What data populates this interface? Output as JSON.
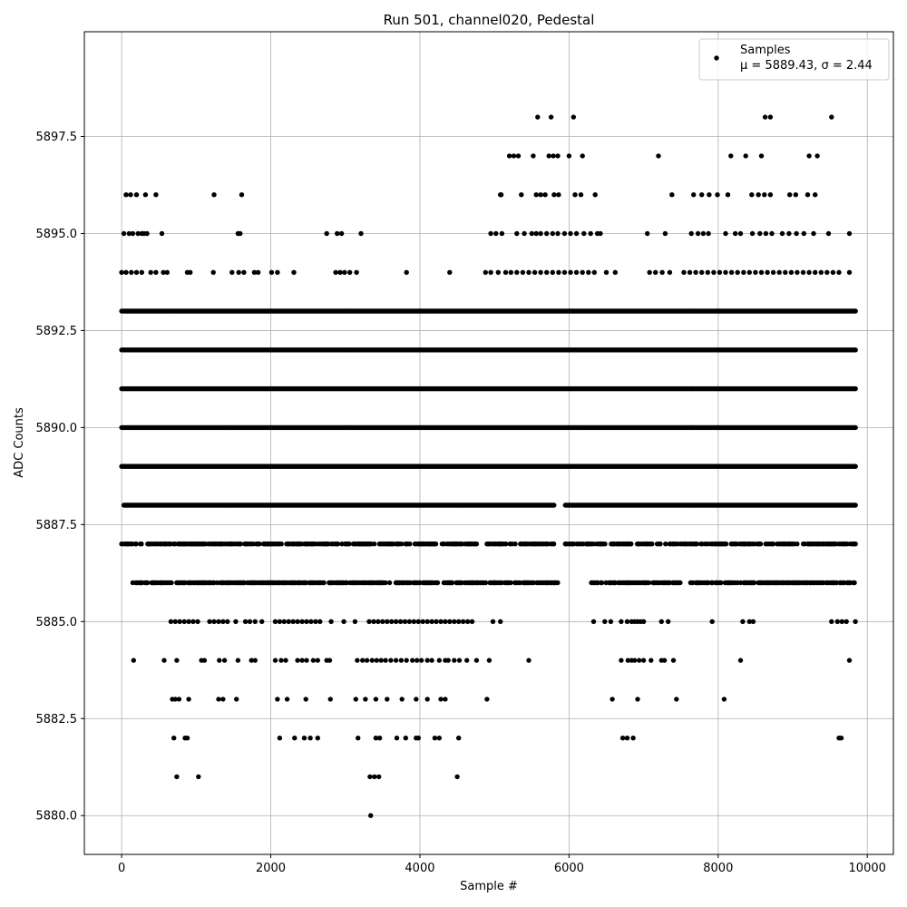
{
  "chart_data": {
    "type": "scatter",
    "title": "Run 501, channel020, Pedestal",
    "xlabel": "Sample #",
    "ylabel": "ADC Counts",
    "xlim": [
      -500,
      10350
    ],
    "ylim": [
      5879.0,
      5900.2
    ],
    "x_ticks": [
      0,
      2000,
      4000,
      6000,
      8000,
      10000
    ],
    "x_tick_labels": [
      "0",
      "2000",
      "4000",
      "6000",
      "8000",
      "10000"
    ],
    "y_ticks": [
      5880.0,
      5882.5,
      5885.0,
      5887.5,
      5890.0,
      5892.5,
      5895.0,
      5897.5
    ],
    "y_tick_labels": [
      "5880.0",
      "5882.5",
      "5885.0",
      "5887.5",
      "5890.0",
      "5892.5",
      "5895.0",
      "5897.5"
    ],
    "grid": true,
    "legend_position": "top-right",
    "legend": {
      "series_name": "Samples",
      "stats_text": "μ = 5889.43, σ = 2.44"
    },
    "marker_color": "#000000",
    "mean": 5889.43,
    "sigma": 2.44,
    "levels": [
      {
        "y": 5888,
        "ranges": [
          [
            30,
            5800
          ],
          [
            5950,
            9850
          ]
        ]
      },
      {
        "y": 5889,
        "ranges": [
          [
            0,
            9850
          ]
        ]
      },
      {
        "y": 5890,
        "ranges": [
          [
            0,
            9850
          ]
        ]
      },
      {
        "y": 5891,
        "ranges": [
          [
            0,
            9850
          ]
        ]
      },
      {
        "y": 5892,
        "ranges": [
          [
            0,
            9850
          ]
        ]
      },
      {
        "y": 5893,
        "ranges": [
          [
            0,
            9850
          ]
        ]
      },
      {
        "y": 5887,
        "ranges": [
          [
            0,
            5800
          ],
          [
            5950,
            9850
          ]
        ]
      },
      {
        "y": 5886,
        "ranges": [
          [
            150,
            5850
          ],
          [
            6300,
            9850
          ]
        ]
      }
    ],
    "points": [
      [
        60,
        5896
      ],
      [
        120,
        5896
      ],
      [
        200,
        5896
      ],
      [
        320,
        5896
      ],
      [
        460,
        5896
      ],
      [
        1240,
        5896
      ],
      [
        1610,
        5896
      ],
      [
        5080,
        5896
      ],
      [
        5090,
        5896
      ],
      [
        5360,
        5896
      ],
      [
        5560,
        5896
      ],
      [
        5620,
        5896
      ],
      [
        5680,
        5896
      ],
      [
        5800,
        5896
      ],
      [
        5860,
        5896
      ],
      [
        6080,
        5896
      ],
      [
        6160,
        5896
      ],
      [
        6350,
        5896
      ],
      [
        7380,
        5896
      ],
      [
        7670,
        5896
      ],
      [
        7780,
        5896
      ],
      [
        7880,
        5896
      ],
      [
        7990,
        5896
      ],
      [
        8130,
        5896
      ],
      [
        8450,
        5896
      ],
      [
        8540,
        5896
      ],
      [
        8620,
        5896
      ],
      [
        8700,
        5896
      ],
      [
        8960,
        5896
      ],
      [
        9040,
        5896
      ],
      [
        9200,
        5896
      ],
      [
        9300,
        5896
      ],
      [
        5200,
        5897
      ],
      [
        5260,
        5897
      ],
      [
        5320,
        5897
      ],
      [
        5520,
        5897
      ],
      [
        5730,
        5897
      ],
      [
        5790,
        5897
      ],
      [
        5850,
        5897
      ],
      [
        6000,
        5897
      ],
      [
        6180,
        5897
      ],
      [
        7200,
        5897
      ],
      [
        8170,
        5897
      ],
      [
        8370,
        5897
      ],
      [
        8580,
        5897
      ],
      [
        9220,
        5897
      ],
      [
        9330,
        5897
      ],
      [
        5580,
        5898
      ],
      [
        5760,
        5898
      ],
      [
        6060,
        5898
      ],
      [
        8630,
        5898
      ],
      [
        8700,
        5898
      ],
      [
        9520,
        5898
      ],
      [
        30,
        5895
      ],
      [
        100,
        5895
      ],
      [
        150,
        5895
      ],
      [
        220,
        5895
      ],
      [
        270,
        5895
      ],
      [
        300,
        5895
      ],
      [
        340,
        5895
      ],
      [
        540,
        5895
      ],
      [
        1560,
        5895
      ],
      [
        1590,
        5895
      ],
      [
        2750,
        5895
      ],
      [
        2890,
        5895
      ],
      [
        2950,
        5895
      ],
      [
        3210,
        5895
      ],
      [
        4950,
        5895
      ],
      [
        5020,
        5895
      ],
      [
        5100,
        5895
      ],
      [
        5300,
        5895
      ],
      [
        5400,
        5895
      ],
      [
        5500,
        5895
      ],
      [
        5560,
        5895
      ],
      [
        5620,
        5895
      ],
      [
        5700,
        5895
      ],
      [
        5780,
        5895
      ],
      [
        5850,
        5895
      ],
      [
        5940,
        5895
      ],
      [
        6020,
        5895
      ],
      [
        6100,
        5895
      ],
      [
        6200,
        5895
      ],
      [
        6290,
        5895
      ],
      [
        6380,
        5895
      ],
      [
        6420,
        5895
      ],
      [
        7050,
        5895
      ],
      [
        7290,
        5895
      ],
      [
        7640,
        5895
      ],
      [
        7730,
        5895
      ],
      [
        7800,
        5895
      ],
      [
        7870,
        5895
      ],
      [
        8100,
        5895
      ],
      [
        8230,
        5895
      ],
      [
        8300,
        5895
      ],
      [
        8460,
        5895
      ],
      [
        8560,
        5895
      ],
      [
        8640,
        5895
      ],
      [
        8720,
        5895
      ],
      [
        8860,
        5895
      ],
      [
        8950,
        5895
      ],
      [
        9050,
        5895
      ],
      [
        9150,
        5895
      ],
      [
        9280,
        5895
      ],
      [
        9480,
        5895
      ],
      [
        9760,
        5895
      ],
      [
        0,
        5894
      ],
      [
        60,
        5894
      ],
      [
        130,
        5894
      ],
      [
        200,
        5894
      ],
      [
        270,
        5894
      ],
      [
        390,
        5894
      ],
      [
        460,
        5894
      ],
      [
        560,
        5894
      ],
      [
        610,
        5894
      ],
      [
        880,
        5894
      ],
      [
        920,
        5894
      ],
      [
        1230,
        5894
      ],
      [
        1480,
        5894
      ],
      [
        1570,
        5894
      ],
      [
        1640,
        5894
      ],
      [
        1780,
        5894
      ],
      [
        1830,
        5894
      ],
      [
        2010,
        5894
      ],
      [
        2090,
        5894
      ],
      [
        2310,
        5894
      ],
      [
        2870,
        5894
      ],
      [
        2930,
        5894
      ],
      [
        2990,
        5894
      ],
      [
        3060,
        5894
      ],
      [
        3150,
        5894
      ],
      [
        3820,
        5894
      ],
      [
        4400,
        5894
      ],
      [
        4880,
        5894
      ],
      [
        4950,
        5894
      ],
      [
        5050,
        5894
      ],
      [
        5150,
        5894
      ],
      [
        5220,
        5894
      ],
      [
        5300,
        5894
      ],
      [
        5380,
        5894
      ],
      [
        5460,
        5894
      ],
      [
        5540,
        5894
      ],
      [
        5620,
        5894
      ],
      [
        5700,
        5894
      ],
      [
        5780,
        5894
      ],
      [
        5860,
        5894
      ],
      [
        5940,
        5894
      ],
      [
        6020,
        5894
      ],
      [
        6100,
        5894
      ],
      [
        6180,
        5894
      ],
      [
        6260,
        5894
      ],
      [
        6340,
        5894
      ],
      [
        6500,
        5894
      ],
      [
        6620,
        5894
      ],
      [
        7080,
        5894
      ],
      [
        7160,
        5894
      ],
      [
        7250,
        5894
      ],
      [
        7350,
        5894
      ],
      [
        7540,
        5894
      ],
      [
        7620,
        5894
      ],
      [
        7700,
        5894
      ],
      [
        7780,
        5894
      ],
      [
        7860,
        5894
      ],
      [
        7940,
        5894
      ],
      [
        8020,
        5894
      ],
      [
        8100,
        5894
      ],
      [
        8180,
        5894
      ],
      [
        8260,
        5894
      ],
      [
        8340,
        5894
      ],
      [
        8420,
        5894
      ],
      [
        8500,
        5894
      ],
      [
        8580,
        5894
      ],
      [
        8660,
        5894
      ],
      [
        8740,
        5894
      ],
      [
        8820,
        5894
      ],
      [
        8900,
        5894
      ],
      [
        8980,
        5894
      ],
      [
        9060,
        5894
      ],
      [
        9140,
        5894
      ],
      [
        9220,
        5894
      ],
      [
        9300,
        5894
      ],
      [
        9380,
        5894
      ],
      [
        9460,
        5894
      ],
      [
        9540,
        5894
      ],
      [
        9620,
        5894
      ],
      [
        9760,
        5894
      ],
      [
        660,
        5885
      ],
      [
        720,
        5885
      ],
      [
        780,
        5885
      ],
      [
        840,
        5885
      ],
      [
        900,
        5885
      ],
      [
        960,
        5885
      ],
      [
        1020,
        5885
      ],
      [
        1180,
        5885
      ],
      [
        1240,
        5885
      ],
      [
        1300,
        5885
      ],
      [
        1360,
        5885
      ],
      [
        1420,
        5885
      ],
      [
        1530,
        5885
      ],
      [
        1660,
        5885
      ],
      [
        1720,
        5885
      ],
      [
        1790,
        5885
      ],
      [
        1880,
        5885
      ],
      [
        2060,
        5885
      ],
      [
        2120,
        5885
      ],
      [
        2180,
        5885
      ],
      [
        2240,
        5885
      ],
      [
        2300,
        5885
      ],
      [
        2360,
        5885
      ],
      [
        2420,
        5885
      ],
      [
        2480,
        5885
      ],
      [
        2540,
        5885
      ],
      [
        2600,
        5885
      ],
      [
        2660,
        5885
      ],
      [
        2810,
        5885
      ],
      [
        2980,
        5885
      ],
      [
        3130,
        5885
      ],
      [
        3320,
        5885
      ],
      [
        3380,
        5885
      ],
      [
        3440,
        5885
      ],
      [
        3500,
        5885
      ],
      [
        3560,
        5885
      ],
      [
        3620,
        5885
      ],
      [
        3680,
        5885
      ],
      [
        3740,
        5885
      ],
      [
        3800,
        5885
      ],
      [
        3860,
        5885
      ],
      [
        3920,
        5885
      ],
      [
        3980,
        5885
      ],
      [
        4040,
        5885
      ],
      [
        4100,
        5885
      ],
      [
        4160,
        5885
      ],
      [
        4220,
        5885
      ],
      [
        4280,
        5885
      ],
      [
        4340,
        5885
      ],
      [
        4400,
        5885
      ],
      [
        4460,
        5885
      ],
      [
        4520,
        5885
      ],
      [
        4580,
        5885
      ],
      [
        4640,
        5885
      ],
      [
        4700,
        5885
      ],
      [
        4980,
        5885
      ],
      [
        5080,
        5885
      ],
      [
        6330,
        5885
      ],
      [
        6480,
        5885
      ],
      [
        6560,
        5885
      ],
      [
        6700,
        5885
      ],
      [
        6780,
        5885
      ],
      [
        6840,
        5885
      ],
      [
        6880,
        5885
      ],
      [
        6920,
        5885
      ],
      [
        6960,
        5885
      ],
      [
        7000,
        5885
      ],
      [
        7240,
        5885
      ],
      [
        7330,
        5885
      ],
      [
        7920,
        5885
      ],
      [
        8330,
        5885
      ],
      [
        8420,
        5885
      ],
      [
        8470,
        5885
      ],
      [
        9520,
        5885
      ],
      [
        9600,
        5885
      ],
      [
        9660,
        5885
      ],
      [
        9720,
        5885
      ],
      [
        9840,
        5885
      ],
      [
        160,
        5884
      ],
      [
        570,
        5884
      ],
      [
        740,
        5884
      ],
      [
        1070,
        5884
      ],
      [
        1110,
        5884
      ],
      [
        1310,
        5884
      ],
      [
        1380,
        5884
      ],
      [
        1560,
        5884
      ],
      [
        1740,
        5884
      ],
      [
        1790,
        5884
      ],
      [
        2060,
        5884
      ],
      [
        2140,
        5884
      ],
      [
        2200,
        5884
      ],
      [
        2360,
        5884
      ],
      [
        2420,
        5884
      ],
      [
        2480,
        5884
      ],
      [
        2570,
        5884
      ],
      [
        2630,
        5884
      ],
      [
        2750,
        5884
      ],
      [
        2790,
        5884
      ],
      [
        3160,
        5884
      ],
      [
        3230,
        5884
      ],
      [
        3290,
        5884
      ],
      [
        3360,
        5884
      ],
      [
        3420,
        5884
      ],
      [
        3480,
        5884
      ],
      [
        3540,
        5884
      ],
      [
        3610,
        5884
      ],
      [
        3680,
        5884
      ],
      [
        3750,
        5884
      ],
      [
        3820,
        5884
      ],
      [
        3900,
        5884
      ],
      [
        3960,
        5884
      ],
      [
        4020,
        5884
      ],
      [
        4100,
        5884
      ],
      [
        4160,
        5884
      ],
      [
        4260,
        5884
      ],
      [
        4340,
        5884
      ],
      [
        4380,
        5884
      ],
      [
        4460,
        5884
      ],
      [
        4530,
        5884
      ],
      [
        4630,
        5884
      ],
      [
        4760,
        5884
      ],
      [
        4930,
        5884
      ],
      [
        5460,
        5884
      ],
      [
        6700,
        5884
      ],
      [
        6790,
        5884
      ],
      [
        6840,
        5884
      ],
      [
        6880,
        5884
      ],
      [
        6940,
        5884
      ],
      [
        7000,
        5884
      ],
      [
        7100,
        5884
      ],
      [
        7240,
        5884
      ],
      [
        7280,
        5884
      ],
      [
        7400,
        5884
      ],
      [
        8300,
        5884
      ],
      [
        9760,
        5884
      ],
      [
        680,
        5883
      ],
      [
        720,
        5883
      ],
      [
        770,
        5883
      ],
      [
        900,
        5883
      ],
      [
        1300,
        5883
      ],
      [
        1360,
        5883
      ],
      [
        1540,
        5883
      ],
      [
        2090,
        5883
      ],
      [
        2220,
        5883
      ],
      [
        2470,
        5883
      ],
      [
        2800,
        5883
      ],
      [
        3140,
        5883
      ],
      [
        3270,
        5883
      ],
      [
        3410,
        5883
      ],
      [
        3560,
        5883
      ],
      [
        3760,
        5883
      ],
      [
        3950,
        5883
      ],
      [
        4100,
        5883
      ],
      [
        4280,
        5883
      ],
      [
        4340,
        5883
      ],
      [
        4900,
        5883
      ],
      [
        6580,
        5883
      ],
      [
        6920,
        5883
      ],
      [
        7440,
        5883
      ],
      [
        8080,
        5883
      ],
      [
        700,
        5882
      ],
      [
        850,
        5882
      ],
      [
        880,
        5882
      ],
      [
        2120,
        5882
      ],
      [
        2320,
        5882
      ],
      [
        2450,
        5882
      ],
      [
        2530,
        5882
      ],
      [
        2630,
        5882
      ],
      [
        3170,
        5882
      ],
      [
        3410,
        5882
      ],
      [
        3460,
        5882
      ],
      [
        3690,
        5882
      ],
      [
        3810,
        5882
      ],
      [
        3950,
        5882
      ],
      [
        3980,
        5882
      ],
      [
        4200,
        5882
      ],
      [
        4260,
        5882
      ],
      [
        4520,
        5882
      ],
      [
        6720,
        5882
      ],
      [
        6780,
        5882
      ],
      [
        6860,
        5882
      ],
      [
        9620,
        5882
      ],
      [
        9650,
        5882
      ],
      [
        740,
        5881
      ],
      [
        1030,
        5881
      ],
      [
        3330,
        5881
      ],
      [
        3390,
        5881
      ],
      [
        3450,
        5881
      ],
      [
        4500,
        5881
      ],
      [
        3340,
        5880
      ]
    ]
  }
}
